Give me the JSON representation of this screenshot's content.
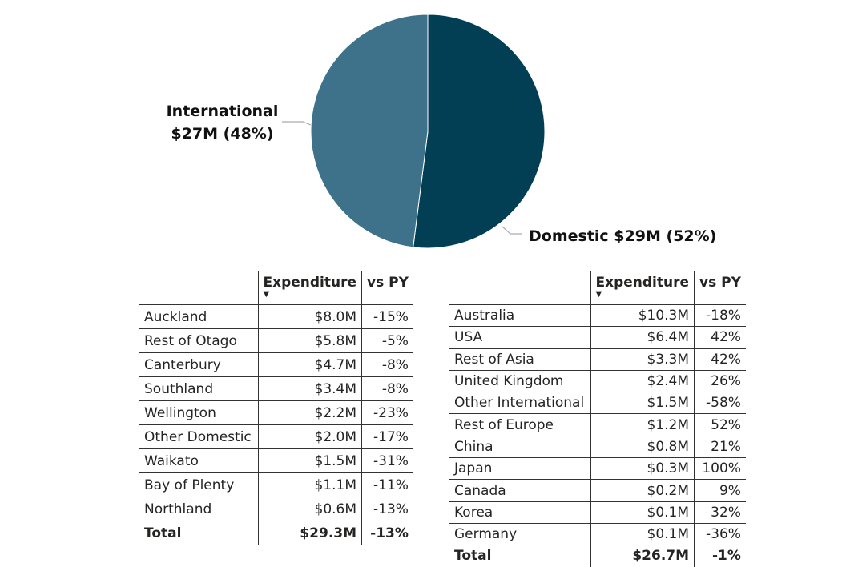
{
  "chart_data": [
    {
      "type": "pie",
      "slices": [
        {
          "name": "Domestic",
          "value": 29,
          "percent": 52,
          "label": "Domestic $29M (52%)",
          "color": "#023E54"
        },
        {
          "name": "International",
          "value": 27,
          "percent": 48,
          "label_line1": "International",
          "label_line2": "$27M (48%)",
          "color": "#3E728A"
        }
      ]
    },
    {
      "type": "table",
      "columns": [
        "",
        "Expenditure",
        "vs PY"
      ],
      "rows": [
        [
          "Auckland",
          "$8.0M",
          "-15%"
        ],
        [
          "Rest of Otago",
          "$5.8M",
          "-5%"
        ],
        [
          "Canterbury",
          "$4.7M",
          "-8%"
        ],
        [
          "Southland",
          "$3.4M",
          "-8%"
        ],
        [
          "Wellington",
          "$2.2M",
          "-23%"
        ],
        [
          "Other Domestic",
          "$2.0M",
          "-17%"
        ],
        [
          "Waikato",
          "$1.5M",
          "-31%"
        ],
        [
          "Bay of Plenty",
          "$1.1M",
          "-11%"
        ],
        [
          "Northland",
          "$0.6M",
          "-13%"
        ]
      ],
      "total": [
        "Total",
        "$29.3M",
        "-13%"
      ]
    },
    {
      "type": "table",
      "columns": [
        "",
        "Expenditure",
        "vs PY"
      ],
      "rows": [
        [
          "Australia",
          "$10.3M",
          "-18%"
        ],
        [
          "USA",
          "$6.4M",
          "42%"
        ],
        [
          "Rest of Asia",
          "$3.3M",
          "42%"
        ],
        [
          "United Kingdom",
          "$2.4M",
          "26%"
        ],
        [
          "Other International",
          "$1.5M",
          "-58%"
        ],
        [
          "Rest of Europe",
          "$1.2M",
          "52%"
        ],
        [
          "China",
          "$0.8M",
          "21%"
        ],
        [
          "Japan",
          "$0.3M",
          "100%"
        ],
        [
          "Canada",
          "$0.2M",
          "9%"
        ],
        [
          "Korea",
          "$0.1M",
          "32%"
        ],
        [
          "Germany",
          "$0.1M",
          "-36%"
        ]
      ],
      "total": [
        "Total",
        "$26.7M",
        "-1%"
      ]
    }
  ]
}
